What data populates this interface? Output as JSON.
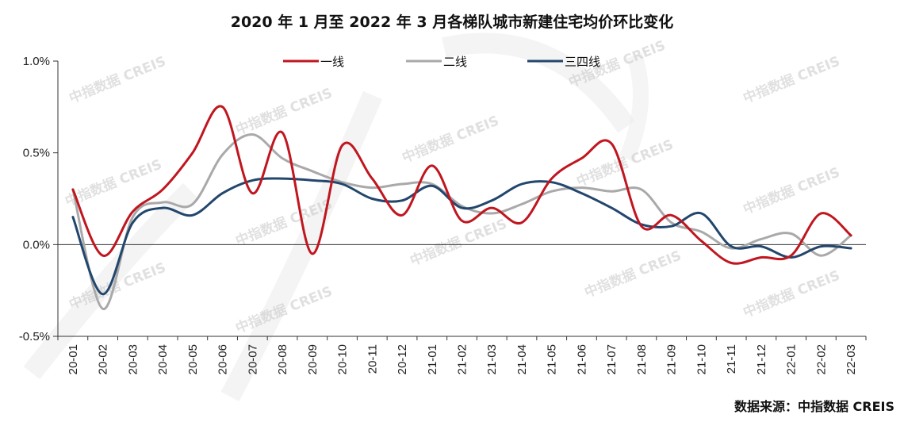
{
  "chart_data": {
    "type": "line",
    "title": "2020 年 1 月至 2022 年 3 月各梯队城市新建住宅均价环比变化",
    "source": "数据来源：中指数据 CREIS",
    "watermark": "中指数据 CREIS",
    "ylim": [
      -0.5,
      1.0
    ],
    "yticks": [
      1.0,
      0.5,
      0.0,
      -0.5
    ],
    "ytick_labels": [
      "1.0%",
      "0.5%",
      "0.0%",
      "-0.5%"
    ],
    "categories": [
      "20-01",
      "20-02",
      "20-03",
      "20-04",
      "20-05",
      "20-06",
      "20-07",
      "20-08",
      "20-09",
      "20-10",
      "20-11",
      "20-12",
      "21-01",
      "21-02",
      "21-03",
      "21-04",
      "21-05",
      "21-06",
      "21-07",
      "21-08",
      "21-09",
      "21-10",
      "21-11",
      "21-12",
      "22-01",
      "22-02",
      "22-03"
    ],
    "legend_position": "top",
    "grid": false,
    "series": [
      {
        "name": "一线",
        "color": "#c0161f",
        "values": [
          0.3,
          -0.06,
          0.18,
          0.3,
          0.5,
          0.75,
          0.28,
          0.61,
          -0.05,
          0.54,
          0.36,
          0.16,
          0.43,
          0.13,
          0.2,
          0.12,
          0.36,
          0.47,
          0.55,
          0.1,
          0.16,
          0.02,
          -0.1,
          -0.07,
          -0.06,
          0.17,
          0.05
        ]
      },
      {
        "name": "二线",
        "color": "#a9a9a9",
        "values": [
          0.3,
          -0.35,
          0.15,
          0.23,
          0.22,
          0.49,
          0.6,
          0.47,
          0.4,
          0.34,
          0.31,
          0.33,
          0.33,
          0.21,
          0.17,
          0.22,
          0.29,
          0.31,
          0.29,
          0.3,
          0.12,
          0.07,
          -0.02,
          0.03,
          0.06,
          -0.06,
          0.05
        ]
      },
      {
        "name": "三四线",
        "color": "#23466d",
        "values": [
          0.15,
          -0.27,
          0.12,
          0.2,
          0.16,
          0.28,
          0.35,
          0.36,
          0.35,
          0.33,
          0.25,
          0.24,
          0.32,
          0.2,
          0.24,
          0.33,
          0.34,
          0.28,
          0.2,
          0.11,
          0.1,
          0.17,
          -0.01,
          -0.01,
          -0.07,
          -0.01,
          -0.02
        ]
      }
    ]
  }
}
